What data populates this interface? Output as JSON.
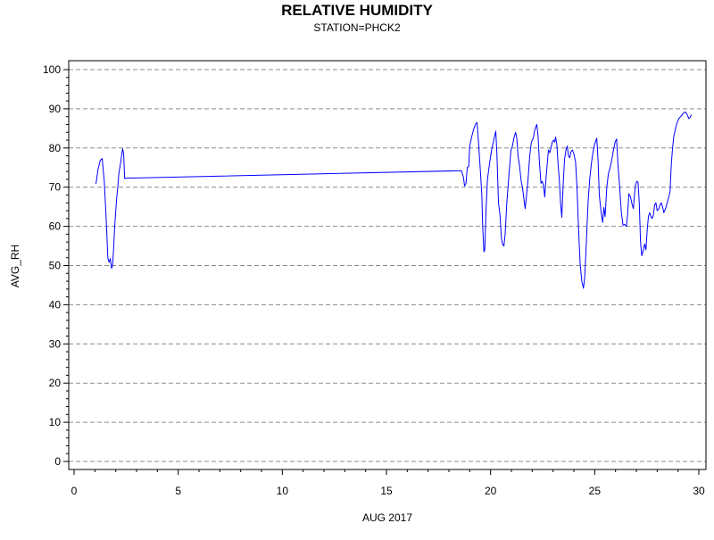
{
  "chart_data": {
    "type": "line",
    "title": "RELATIVE HUMIDITY",
    "subtitle": "STATION=PHCK2",
    "xlabel": "AUG 2017",
    "ylabel": "AVG_RH",
    "xlim": [
      0,
      30
    ],
    "ylim": [
      0,
      100
    ],
    "x_ticks": [
      0,
      5,
      10,
      15,
      20,
      25,
      30
    ],
    "y_ticks": [
      0,
      10,
      20,
      30,
      40,
      50,
      60,
      70,
      80,
      90,
      100
    ],
    "grid": "horizontal-dashed",
    "line_color": "#0000ff",
    "series": [
      {
        "points": [
          [
            1.05,
            70.8
          ],
          [
            1.15,
            74.5
          ],
          [
            1.25,
            76.8
          ],
          [
            1.35,
            77.3
          ],
          [
            1.45,
            71.5
          ],
          [
            1.55,
            61.0
          ],
          [
            1.62,
            52.0
          ],
          [
            1.68,
            50.8
          ],
          [
            1.74,
            51.8
          ],
          [
            1.8,
            49.3
          ],
          [
            1.85,
            50.0
          ],
          [
            1.9,
            54.5
          ],
          [
            1.95,
            60.0
          ],
          [
            2.05,
            67.5
          ],
          [
            2.1,
            70.0
          ],
          [
            2.15,
            73.5
          ],
          [
            2.25,
            76.8
          ],
          [
            2.33,
            79.8
          ],
          [
            2.38,
            78.5
          ],
          [
            2.43,
            72.2
          ],
          [
            2.5,
            72.3
          ],
          [
            18.6,
            74.2
          ],
          [
            18.7,
            72.5
          ],
          [
            18.75,
            70.3
          ],
          [
            18.82,
            71.0
          ],
          [
            18.88,
            75.0
          ],
          [
            18.95,
            75.3
          ],
          [
            19.0,
            80.5
          ],
          [
            19.1,
            83.0
          ],
          [
            19.2,
            85.0
          ],
          [
            19.3,
            86.3
          ],
          [
            19.35,
            86.5
          ],
          [
            19.42,
            81.5
          ],
          [
            19.5,
            75.0
          ],
          [
            19.58,
            68.0
          ],
          [
            19.62,
            60.0
          ],
          [
            19.68,
            53.5
          ],
          [
            19.72,
            54.0
          ],
          [
            19.78,
            64.0
          ],
          [
            19.85,
            72.0
          ],
          [
            19.95,
            76.0
          ],
          [
            20.05,
            79.5
          ],
          [
            20.15,
            82.0
          ],
          [
            20.25,
            84.3
          ],
          [
            20.3,
            79.0
          ],
          [
            20.38,
            66.0
          ],
          [
            20.45,
            63.0
          ],
          [
            20.52,
            57.0
          ],
          [
            20.58,
            55.3
          ],
          [
            20.64,
            55.0
          ],
          [
            20.7,
            58.0
          ],
          [
            20.78,
            66.0
          ],
          [
            20.88,
            73.0
          ],
          [
            20.98,
            79.5
          ],
          [
            21.05,
            80.5
          ],
          [
            21.12,
            82.5
          ],
          [
            21.2,
            84.0
          ],
          [
            21.26,
            82.5
          ],
          [
            21.32,
            78.0
          ],
          [
            21.4,
            75.0
          ],
          [
            21.47,
            71.5
          ],
          [
            21.53,
            70.0
          ],
          [
            21.6,
            67.0
          ],
          [
            21.66,
            64.5
          ],
          [
            21.72,
            67.5
          ],
          [
            21.8,
            72.0
          ],
          [
            21.88,
            78.0
          ],
          [
            21.96,
            81.5
          ],
          [
            22.05,
            82.5
          ],
          [
            22.12,
            84.5
          ],
          [
            22.18,
            85.5
          ],
          [
            22.22,
            86.0
          ],
          [
            22.28,
            83.0
          ],
          [
            22.35,
            76.0
          ],
          [
            22.42,
            71.0
          ],
          [
            22.48,
            71.5
          ],
          [
            22.54,
            70.5
          ],
          [
            22.6,
            67.5
          ],
          [
            22.66,
            72.0
          ],
          [
            22.72,
            76.0
          ],
          [
            22.78,
            79.5
          ],
          [
            22.84,
            78.8
          ],
          [
            22.9,
            80.0
          ],
          [
            22.96,
            81.5
          ],
          [
            23.02,
            82.0
          ],
          [
            23.08,
            81.5
          ],
          [
            23.12,
            82.8
          ],
          [
            23.18,
            81.0
          ],
          [
            23.24,
            76.0
          ],
          [
            23.3,
            72.0
          ],
          [
            23.36,
            66.0
          ],
          [
            23.42,
            62.3
          ],
          [
            23.48,
            70.0
          ],
          [
            23.55,
            77.0
          ],
          [
            23.62,
            79.5
          ],
          [
            23.68,
            80.5
          ],
          [
            23.74,
            78.0
          ],
          [
            23.8,
            77.5
          ],
          [
            23.86,
            79.0
          ],
          [
            23.93,
            79.5
          ],
          [
            24.0,
            78.5
          ],
          [
            24.08,
            76.5
          ],
          [
            24.15,
            70.0
          ],
          [
            24.22,
            60.0
          ],
          [
            24.3,
            50.5
          ],
          [
            24.38,
            46.0
          ],
          [
            24.46,
            44.2
          ],
          [
            24.52,
            47.0
          ],
          [
            24.6,
            56.0
          ],
          [
            24.68,
            66.0
          ],
          [
            24.76,
            72.0
          ],
          [
            24.84,
            76.0
          ],
          [
            24.92,
            79.0
          ],
          [
            25.0,
            81.0
          ],
          [
            25.1,
            82.5
          ],
          [
            25.16,
            77.0
          ],
          [
            25.22,
            68.0
          ],
          [
            25.3,
            64.0
          ],
          [
            25.38,
            61.0
          ],
          [
            25.44,
            64.8
          ],
          [
            25.5,
            62.5
          ],
          [
            25.58,
            70.0
          ],
          [
            25.66,
            73.5
          ],
          [
            25.74,
            75.0
          ],
          [
            25.82,
            77.0
          ],
          [
            25.9,
            79.5
          ],
          [
            25.98,
            81.5
          ],
          [
            26.05,
            82.3
          ],
          [
            26.12,
            75.5
          ],
          [
            26.2,
            70.0
          ],
          [
            26.28,
            63.5
          ],
          [
            26.36,
            60.3
          ],
          [
            26.44,
            60.5
          ],
          [
            26.52,
            60.0
          ],
          [
            26.58,
            63.0
          ],
          [
            26.64,
            68.3
          ],
          [
            26.72,
            67.5
          ],
          [
            26.8,
            65.5
          ],
          [
            26.86,
            64.5
          ],
          [
            26.9,
            67.5
          ],
          [
            26.96,
            70.5
          ],
          [
            27.02,
            71.5
          ],
          [
            27.08,
            71.3
          ],
          [
            27.14,
            66.0
          ],
          [
            27.2,
            56.0
          ],
          [
            27.26,
            52.5
          ],
          [
            27.34,
            54.0
          ],
          [
            27.4,
            55.5
          ],
          [
            27.46,
            54.0
          ],
          [
            27.52,
            59.0
          ],
          [
            27.58,
            62.5
          ],
          [
            27.64,
            63.5
          ],
          [
            27.7,
            62.5
          ],
          [
            27.76,
            62.0
          ],
          [
            27.82,
            63.0
          ],
          [
            27.88,
            65.5
          ],
          [
            27.94,
            66.0
          ],
          [
            28.0,
            64.0
          ],
          [
            28.08,
            64.5
          ],
          [
            28.14,
            65.5
          ],
          [
            28.2,
            66.0
          ],
          [
            28.26,
            65.0
          ],
          [
            28.32,
            63.5
          ],
          [
            28.4,
            64.5
          ],
          [
            28.48,
            66.0
          ],
          [
            28.56,
            67.5
          ],
          [
            28.62,
            69.0
          ],
          [
            28.68,
            76.0
          ],
          [
            28.74,
            80.0
          ],
          [
            28.8,
            83.0
          ],
          [
            28.88,
            85.0
          ],
          [
            28.96,
            86.5
          ],
          [
            29.04,
            87.5
          ],
          [
            29.12,
            88.0
          ],
          [
            29.2,
            88.5
          ],
          [
            29.28,
            89.0
          ],
          [
            29.36,
            89.2
          ],
          [
            29.44,
            88.5
          ],
          [
            29.52,
            87.5
          ],
          [
            29.58,
            87.8
          ],
          [
            29.64,
            88.5
          ]
        ]
      }
    ]
  }
}
